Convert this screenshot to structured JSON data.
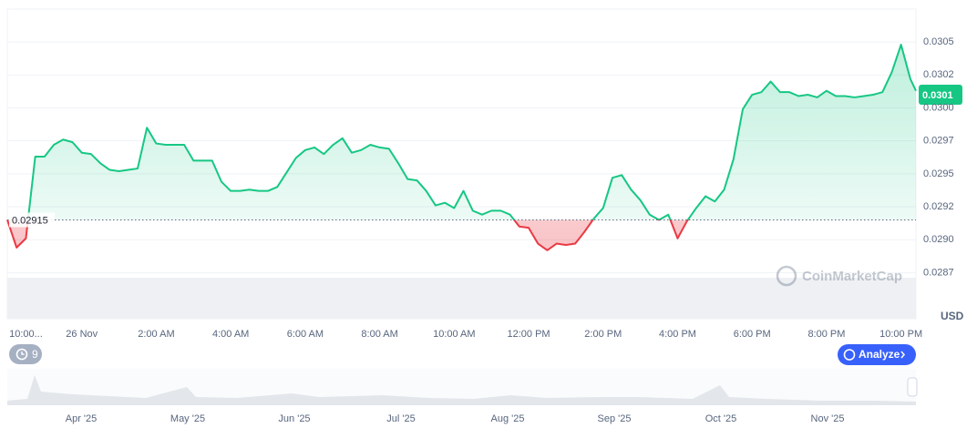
{
  "chart_data": {
    "type": "area",
    "x": [
      -2,
      -1.75,
      -1.5,
      -1.25,
      -1,
      -0.75,
      -0.5,
      -0.25,
      0,
      0.25,
      0.5,
      0.75,
      1,
      1.25,
      1.5,
      1.75,
      2,
      2.25,
      2.5,
      2.75,
      3,
      3.25,
      3.5,
      3.75,
      4,
      4.25,
      4.5,
      4.75,
      5,
      5.25,
      5.5,
      5.75,
      6,
      6.25,
      6.5,
      6.75,
      7,
      7.25,
      7.5,
      7.75,
      8,
      8.25,
      8.5,
      8.75,
      9,
      9.25,
      9.5,
      9.75,
      10,
      10.25,
      10.5,
      10.75,
      11,
      11.25,
      11.5,
      11.75,
      12,
      12.25,
      12.5,
      12.75,
      13,
      13.25,
      13.5,
      13.75,
      14,
      14.25,
      14.5,
      14.75,
      15,
      15.25,
      15.5,
      15.75,
      16,
      16.25,
      16.5,
      16.75,
      17,
      17.25,
      17.5,
      17.75,
      18,
      18.25,
      18.5,
      18.75,
      19,
      19.25,
      19.5,
      19.75,
      20,
      20.25,
      20.5,
      20.75,
      21,
      21.25,
      21.5,
      21.75,
      22,
      22.25,
      22.4
    ],
    "values": [
      0.02915,
      0.02894,
      0.02901,
      0.02963,
      0.02963,
      0.02972,
      0.02976,
      0.02974,
      0.02966,
      0.02965,
      0.02958,
      0.02953,
      0.02952,
      0.02953,
      0.02954,
      0.02985,
      0.02973,
      0.02972,
      0.02972,
      0.02972,
      0.0296,
      0.0296,
      0.0296,
      0.02944,
      0.02937,
      0.02937,
      0.02938,
      0.02937,
      0.02937,
      0.0294,
      0.02951,
      0.02962,
      0.02968,
      0.0297,
      0.02965,
      0.02972,
      0.02977,
      0.02966,
      0.02968,
      0.02972,
      0.0297,
      0.02969,
      0.02958,
      0.02946,
      0.02945,
      0.02937,
      0.02926,
      0.02928,
      0.02924,
      0.02937,
      0.02922,
      0.02919,
      0.02922,
      0.02922,
      0.02919,
      0.0291,
      0.02909,
      0.02897,
      0.02892,
      0.02897,
      0.02896,
      0.02897,
      0.02906,
      0.02916,
      0.02924,
      0.02947,
      0.02949,
      0.02938,
      0.0293,
      0.02919,
      0.02915,
      0.02919,
      0.02901,
      0.02914,
      0.02924,
      0.02933,
      0.02929,
      0.02938,
      0.02961,
      0.02999,
      0.0301,
      0.03012,
      0.0302,
      0.03012,
      0.03012,
      0.03009,
      0.0301,
      0.03008,
      0.03013,
      0.03009,
      0.03009,
      0.03008,
      0.03009,
      0.0301,
      0.03012,
      0.03027,
      0.03048,
      0.03022,
      0.03013
    ],
    "baseline": 0.02915,
    "current_price": 0.0301,
    "currency": "USD",
    "color_up": "#16c784",
    "color_down": "#ea3943",
    "xlim": [
      -2,
      22.4
    ],
    "ylim": [
      0.0284,
      0.03075
    ],
    "xticks": [
      {
        "value": -1.5,
        "label": "10:00..."
      },
      {
        "value": 0,
        "label": "26 Nov"
      },
      {
        "value": 2,
        "label": "2:00 AM"
      },
      {
        "value": 4,
        "label": "4:00 AM"
      },
      {
        "value": 6,
        "label": "6:00 AM"
      },
      {
        "value": 8,
        "label": "8:00 AM"
      },
      {
        "value": 10,
        "label": "10:00 AM"
      },
      {
        "value": 12,
        "label": "12:00 PM"
      },
      {
        "value": 14,
        "label": "2:00 PM"
      },
      {
        "value": 16,
        "label": "4:00 PM"
      },
      {
        "value": 18,
        "label": "6:00 PM"
      },
      {
        "value": 20,
        "label": "8:00 PM"
      },
      {
        "value": 22,
        "label": "10:00 PM"
      }
    ],
    "yticks": [
      {
        "value": 0.02875,
        "label": "0.0287"
      },
      {
        "value": 0.029,
        "label": "0.0290"
      },
      {
        "value": 0.02925,
        "label": "0.0292"
      },
      {
        "value": 0.0295,
        "label": "0.0295"
      },
      {
        "value": 0.02975,
        "label": "0.0297"
      },
      {
        "value": 0.03,
        "label": "0.0300"
      },
      {
        "value": 0.03025,
        "label": "0.0302"
      },
      {
        "value": 0.0305,
        "label": "0.0305"
      }
    ],
    "grid": true
  },
  "ui": {
    "alert_count": "9",
    "analyze_button": "Analyze",
    "watermark": "CoinMarketCap"
  },
  "navigator": {
    "months": [
      "Apr '25",
      "May '25",
      "Jun '25",
      "Jul '25",
      "Aug '25",
      "Sep '25",
      "Oct '25",
      "Nov '25"
    ]
  }
}
